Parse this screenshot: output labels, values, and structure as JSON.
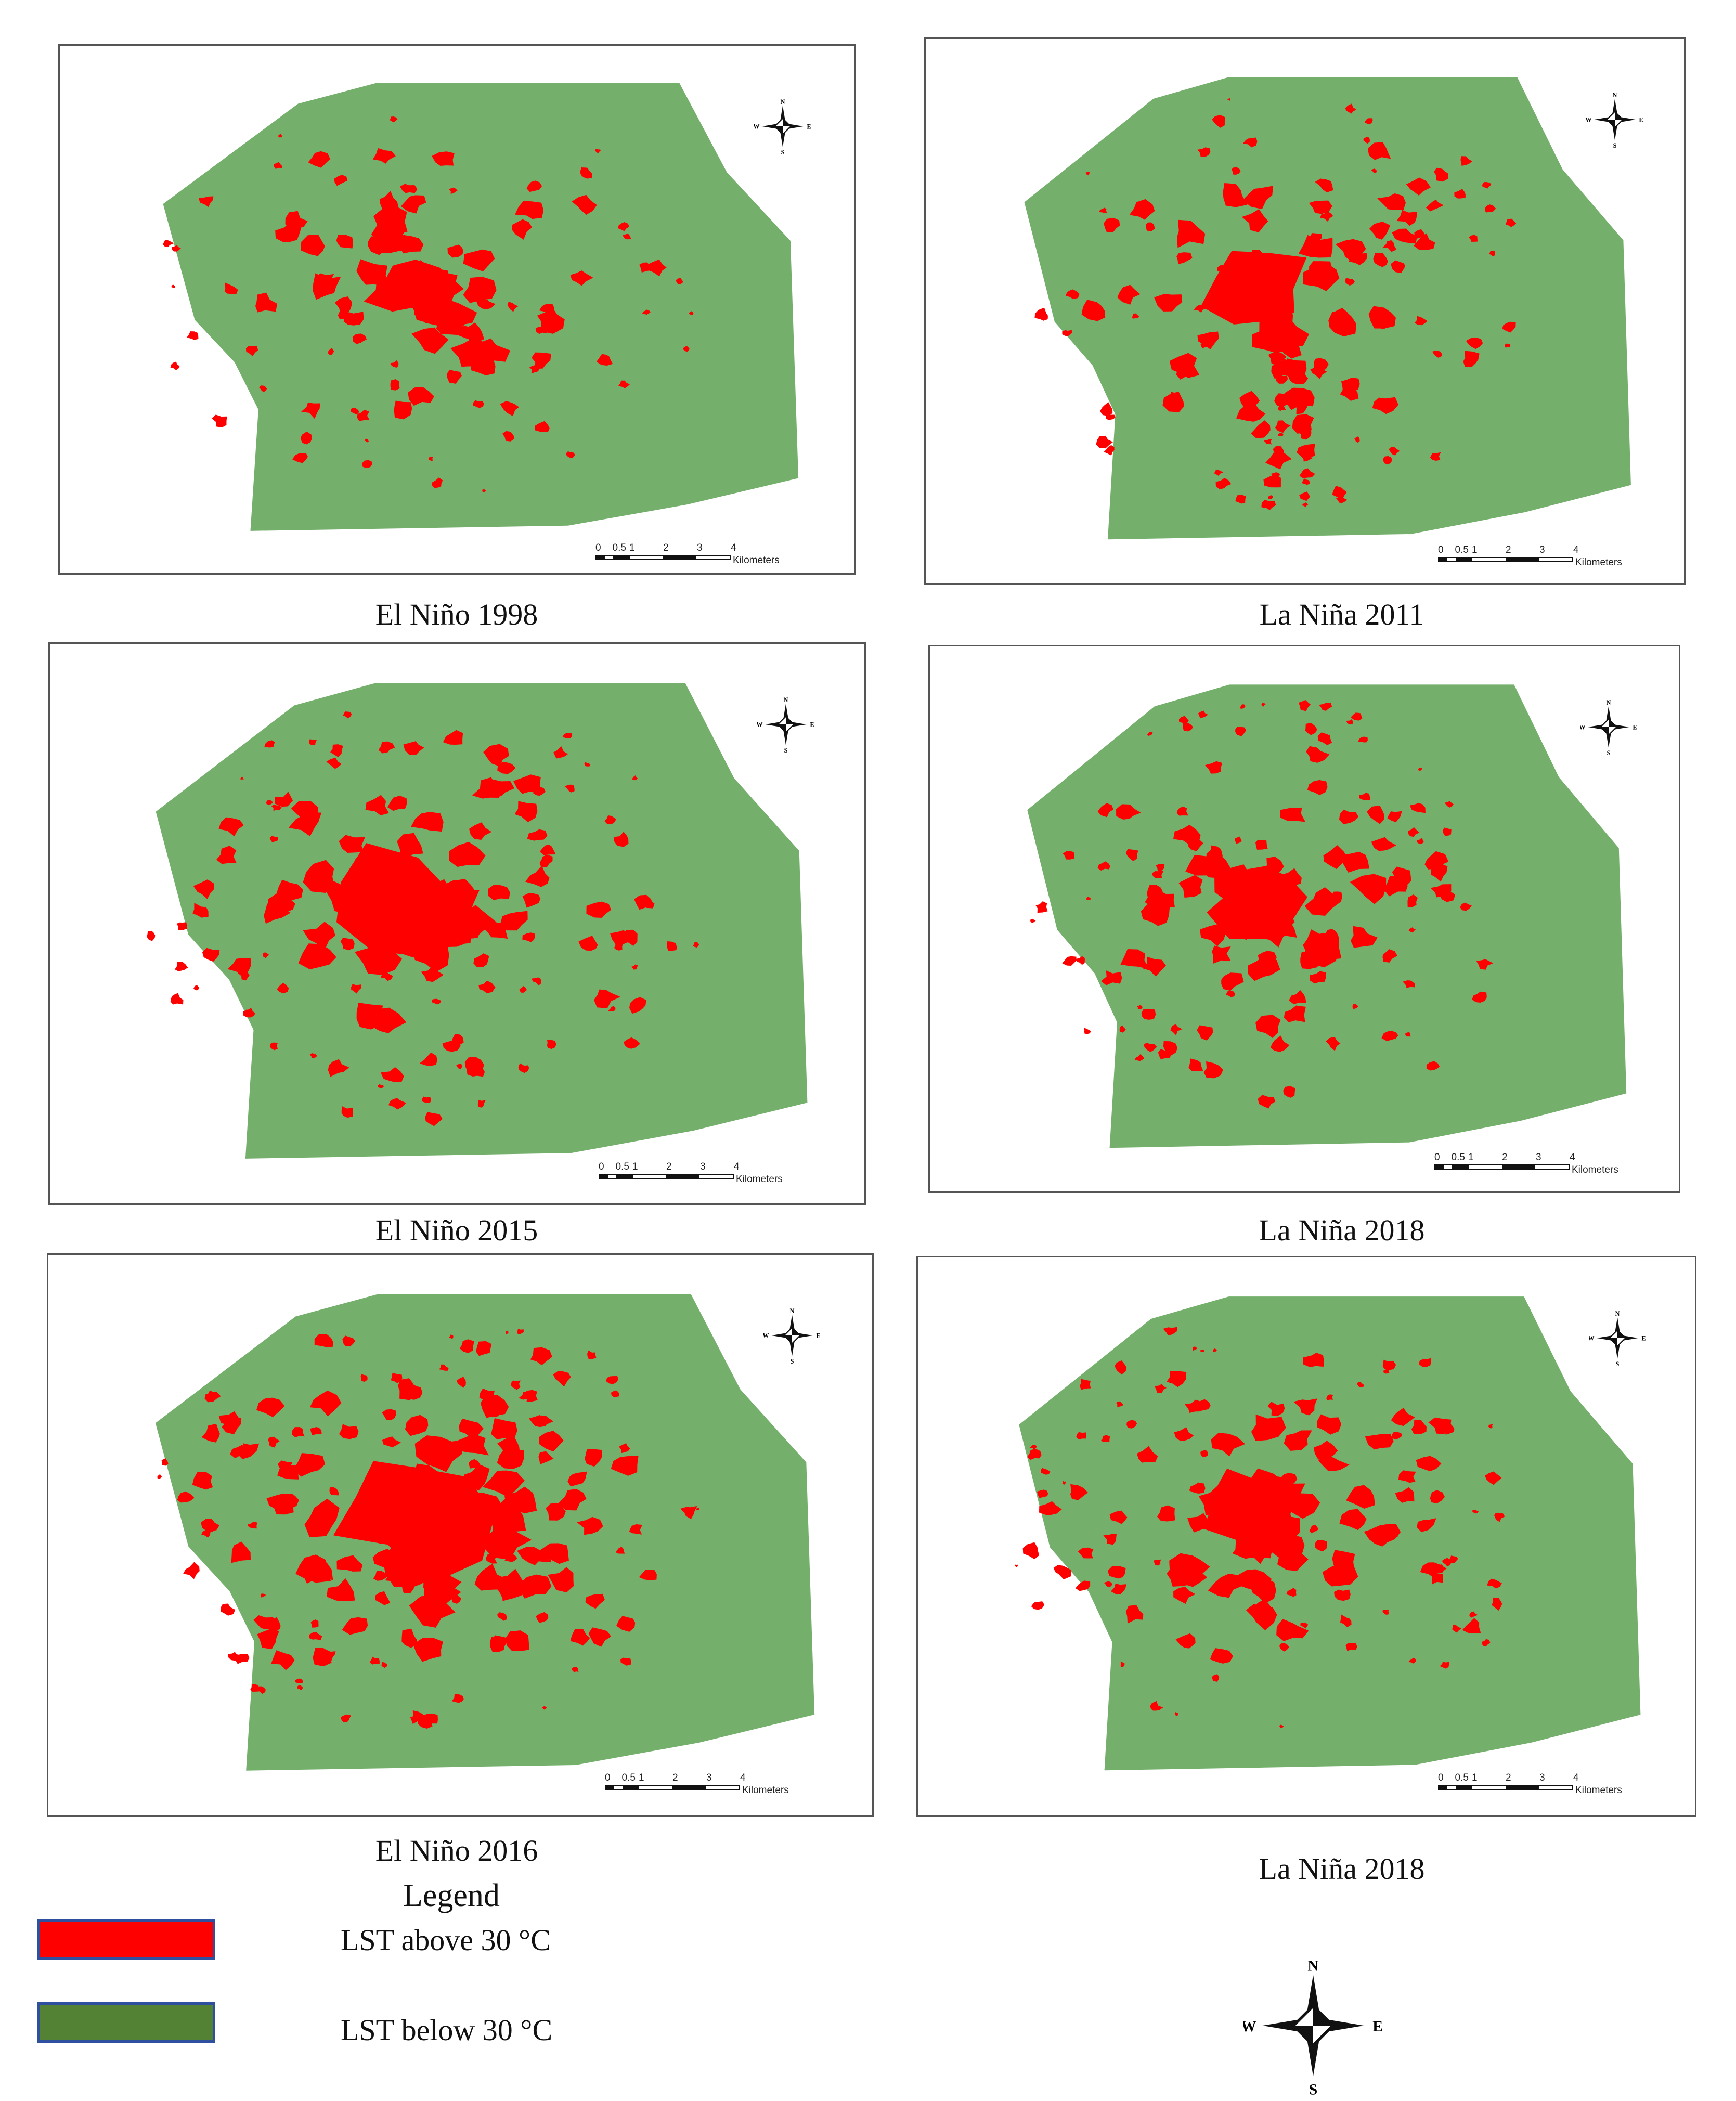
{
  "colors": {
    "lst_above": "#ff0000",
    "lst_below": "#74b06c",
    "legend_below_swatch": "#548235",
    "frame": "#555555"
  },
  "scale_bar": {
    "ticks": [
      "0",
      "0.5",
      "1",
      "2",
      "3",
      "4"
    ],
    "unit": "Kilometers"
  },
  "compass": {
    "n": "N",
    "s": "S",
    "e": "E",
    "w": "W",
    "icon": "north-arrow-icon"
  },
  "maps": [
    {
      "caption": "El Niño 1998"
    },
    {
      "caption": "La Niña 2011"
    },
    {
      "caption": "El Niño 2015"
    },
    {
      "caption": "La Niña 2018"
    },
    {
      "caption": "El Niño 2016"
    },
    {
      "caption": "La Niña 2018"
    }
  ],
  "legend": {
    "title": "Legend",
    "items": [
      {
        "label": "LST above 30 °C",
        "color": "#ff0000"
      },
      {
        "label": "LST below 30 °C",
        "color": "#548235"
      }
    ]
  }
}
